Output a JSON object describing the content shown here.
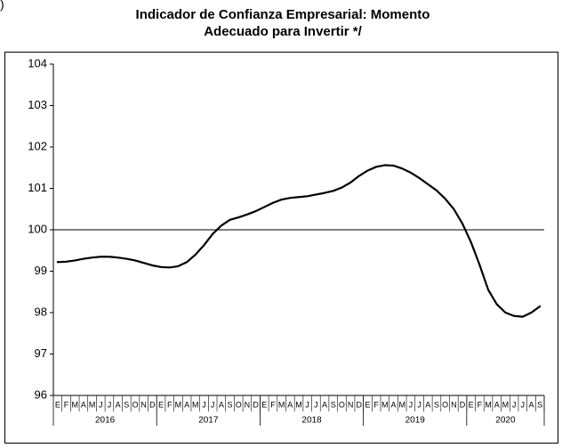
{
  "panel_label": ")",
  "chart_data": {
    "type": "line",
    "title": "Indicador de Confianza Empresarial: Momento",
    "subtitle": "Adecuado para Invertir */",
    "categories": [
      "E",
      "F",
      "M",
      "A",
      "M",
      "J",
      "J",
      "A",
      "S",
      "O",
      "N",
      "D",
      "E",
      "F",
      "M",
      "A",
      "M",
      "J",
      "J",
      "A",
      "S",
      "O",
      "N",
      "D",
      "E",
      "F",
      "M",
      "A",
      "M",
      "J",
      "J",
      "A",
      "S",
      "O",
      "N",
      "D",
      "E",
      "F",
      "M",
      "A",
      "M",
      "J",
      "J",
      "A",
      "S",
      "O",
      "N",
      "D",
      "E",
      "F",
      "M",
      "A",
      "M",
      "J",
      "J",
      "A",
      "S"
    ],
    "years": [
      "2016",
      "2017",
      "2018",
      "2019",
      "2020"
    ],
    "series": [
      {
        "color": "#000000",
        "values": [
          99.22,
          99.23,
          99.26,
          99.3,
          99.33,
          99.35,
          99.35,
          99.33,
          99.3,
          99.26,
          99.2,
          99.14,
          99.1,
          99.09,
          99.12,
          99.22,
          99.4,
          99.63,
          99.9,
          100.1,
          100.24,
          100.3,
          100.37,
          100.45,
          100.55,
          100.65,
          100.73,
          100.77,
          100.79,
          100.81,
          100.85,
          100.89,
          100.94,
          101.02,
          101.14,
          101.3,
          101.43,
          101.52,
          101.56,
          101.55,
          101.48,
          101.38,
          101.25,
          101.1,
          100.95,
          100.75,
          100.5,
          100.15,
          99.7,
          99.15,
          98.55,
          98.2,
          98.0,
          97.92,
          97.9,
          98.0,
          98.15
        ]
      }
    ],
    "reference_line": 100,
    "ylim": [
      96,
      104
    ],
    "yticks": [
      96,
      97,
      98,
      99,
      100,
      101,
      102,
      103,
      104
    ]
  }
}
